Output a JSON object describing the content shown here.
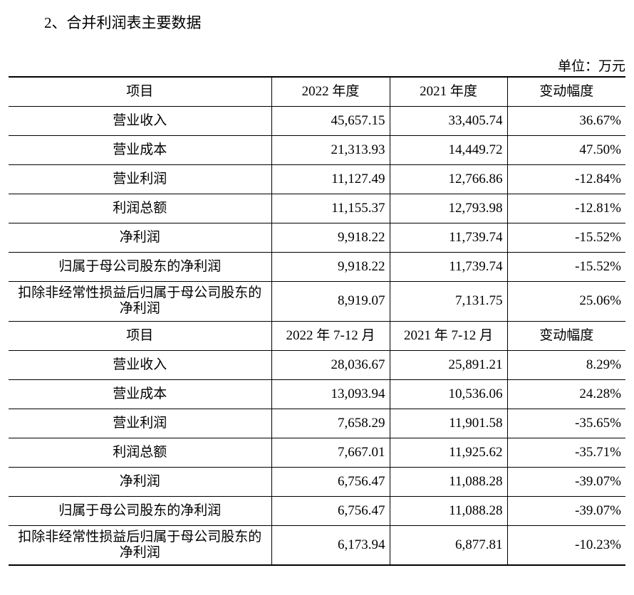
{
  "title": "2、合并利润表主要数据",
  "unit": "单位：万元",
  "sections": [
    {
      "header": [
        "项目",
        "2022 年度",
        "2021 年度",
        "变动幅度"
      ],
      "rows": [
        [
          "营业收入",
          "45,657.15",
          "33,405.74",
          "36.67%"
        ],
        [
          "营业成本",
          "21,313.93",
          "14,449.72",
          "47.50%"
        ],
        [
          "营业利润",
          "11,127.49",
          "12,766.86",
          "-12.84%"
        ],
        [
          "利润总额",
          "11,155.37",
          "12,793.98",
          "-12.81%"
        ],
        [
          "净利润",
          "9,918.22",
          "11,739.74",
          "-15.52%"
        ],
        [
          "归属于母公司股东的净利润",
          "9,918.22",
          "11,739.74",
          "-15.52%"
        ],
        [
          "扣除非经常性损益后归属于母公司股东的净利润",
          "8,919.07",
          "7,131.75",
          "25.06%"
        ]
      ]
    },
    {
      "header": [
        "项目",
        "2022 年 7-12 月",
        "2021 年 7-12 月",
        "变动幅度"
      ],
      "rows": [
        [
          "营业收入",
          "28,036.67",
          "25,891.21",
          "8.29%"
        ],
        [
          "营业成本",
          "13,093.94",
          "10,536.06",
          "24.28%"
        ],
        [
          "营业利润",
          "7,658.29",
          "11,901.58",
          "-35.65%"
        ],
        [
          "利润总额",
          "7,667.01",
          "11,925.62",
          "-35.71%"
        ],
        [
          "净利润",
          "6,756.47",
          "11,088.28",
          "-39.07%"
        ],
        [
          "归属于母公司股东的净利润",
          "6,756.47",
          "11,088.28",
          "-39.07%"
        ],
        [
          "扣除非经常性损益后归属于母公司股东的净利润",
          "6,173.94",
          "6,877.81",
          "-10.23%"
        ]
      ]
    }
  ]
}
